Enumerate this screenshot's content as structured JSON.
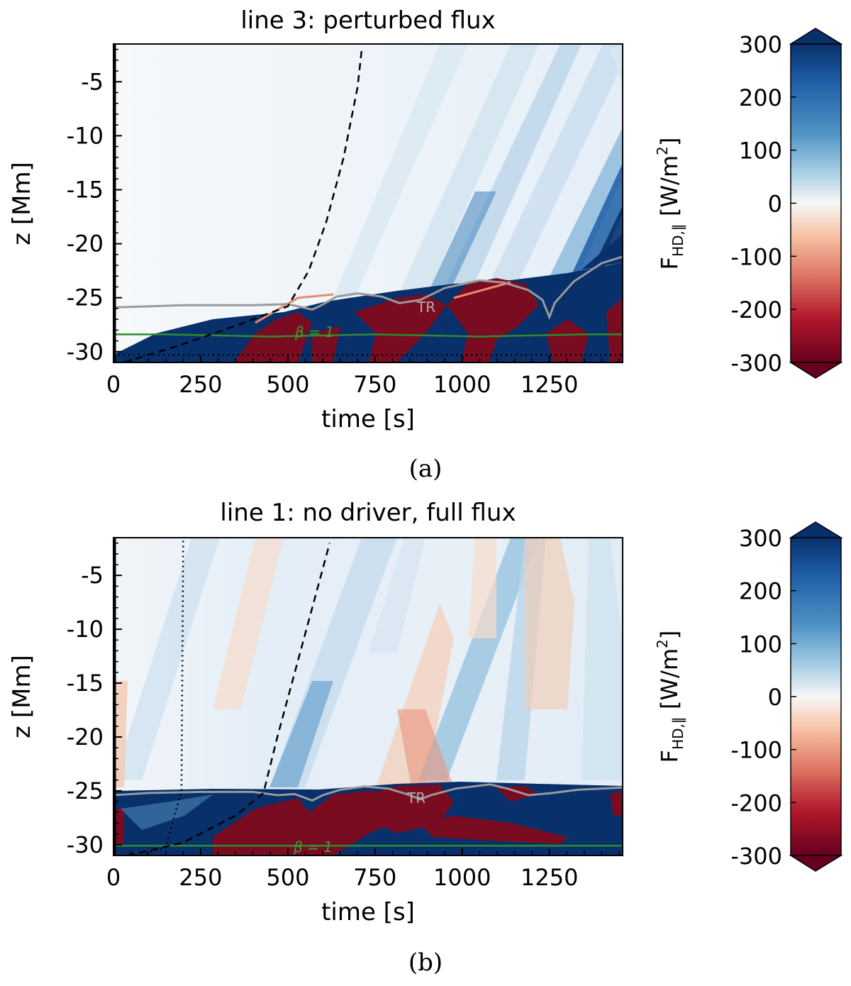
{
  "colors": {
    "positive_strong": "#08306b",
    "positive_light": "#cfe3f1",
    "zero": "#f7f7f7",
    "negative_light": "#f4c4a8",
    "negative_strong": "#67001f",
    "transition_region_line": "#999999",
    "beta_line": "#2e8b2e"
  },
  "chart_data": [
    {
      "type": "heatmap",
      "panel_label": "(a)",
      "title": "line 3: perturbed flux",
      "xlabel": "time [s]",
      "ylabel": "z [Mm]",
      "xlim": [
        0,
        1460
      ],
      "ylim": [
        -31,
        -1.5
      ],
      "xticks": [
        "0",
        "250",
        "500",
        "750",
        "1000",
        "1250"
      ],
      "xtick_values": [
        0,
        250,
        500,
        750,
        1000,
        1250
      ],
      "yticks": [
        "-5",
        "-10",
        "-15",
        "-20",
        "-25",
        "-30"
      ],
      "ytick_values": [
        -5,
        -10,
        -15,
        -20,
        -25,
        -30
      ],
      "colorbar": {
        "label_main": "F",
        "label_sub": "HD,∥",
        "label_unit_open": " [W/m",
        "label_unit_sup": "2",
        "label_unit_close": "]",
        "range": [
          -300,
          300
        ],
        "ticks": [
          "300",
          "200",
          "100",
          "0",
          "-100",
          "-200",
          "-300"
        ],
        "tick_values": [
          300,
          200,
          100,
          0,
          -100,
          -200,
          -300
        ]
      },
      "annotations": {
        "tr_label": "TR",
        "beta_label": "β = 1"
      },
      "tr_line": [
        [
          0,
          -25.9
        ],
        [
          100,
          -25.8
        ],
        [
          200,
          -25.7
        ],
        [
          300,
          -25.7
        ],
        [
          400,
          -25.7
        ],
        [
          500,
          -25.6
        ],
        [
          570,
          -26.1
        ],
        [
          590,
          -25.8
        ],
        [
          640,
          -24.9
        ],
        [
          700,
          -24.6
        ],
        [
          770,
          -24.9
        ],
        [
          820,
          -25.5
        ],
        [
          880,
          -25.2
        ],
        [
          950,
          -24.1
        ],
        [
          1050,
          -23.4
        ],
        [
          1120,
          -23.6
        ],
        [
          1190,
          -24.3
        ],
        [
          1230,
          -25.2
        ],
        [
          1250,
          -26.8
        ],
        [
          1265,
          -25.5
        ],
        [
          1320,
          -23.5
        ],
        [
          1400,
          -21.8
        ],
        [
          1460,
          -21.2
        ]
      ],
      "beta_line": [
        [
          0,
          -28.4
        ],
        [
          150,
          -28.4
        ],
        [
          300,
          -28.5
        ],
        [
          450,
          -28.6
        ],
        [
          600,
          -28.5
        ],
        [
          750,
          -28.4
        ],
        [
          900,
          -28.5
        ],
        [
          1050,
          -28.6
        ],
        [
          1200,
          -28.5
        ],
        [
          1350,
          -28.4
        ],
        [
          1460,
          -28.4
        ]
      ],
      "dashed_line": [
        [
          30,
          -31
        ],
        [
          200,
          -29.3
        ],
        [
          350,
          -27.6
        ],
        [
          500,
          -25.8
        ],
        [
          560,
          -22.5
        ],
        [
          610,
          -18
        ],
        [
          660,
          -12
        ],
        [
          700,
          -5.5
        ],
        [
          712,
          -2
        ]
      ],
      "dotted_line": [
        [
          0,
          -30.3
        ],
        [
          1460,
          -30.3
        ]
      ]
    },
    {
      "type": "heatmap",
      "panel_label": "(b)",
      "title": "line 1: no driver, full flux",
      "xlabel": "time [s]",
      "ylabel": "z [Mm]",
      "xlim": [
        0,
        1460
      ],
      "ylim": [
        -31,
        -1.5
      ],
      "xticks": [
        "0",
        "250",
        "500",
        "750",
        "1000",
        "1250"
      ],
      "xtick_values": [
        0,
        250,
        500,
        750,
        1000,
        1250
      ],
      "yticks": [
        "-5",
        "-10",
        "-15",
        "-20",
        "-25",
        "-30"
      ],
      "ytick_values": [
        -5,
        -10,
        -15,
        -20,
        -25,
        -30
      ],
      "colorbar": {
        "label_main": "F",
        "label_sub": "HD,∥",
        "label_unit_open": " [W/m",
        "label_unit_sup": "2",
        "label_unit_close": "]",
        "range": [
          -300,
          300
        ],
        "ticks": [
          "300",
          "200",
          "100",
          "0",
          "-100",
          "-200",
          "-300"
        ],
        "tick_values": [
          300,
          200,
          100,
          0,
          -100,
          -200,
          -300
        ]
      },
      "annotations": {
        "tr_label": "TR",
        "beta_label": "β = 1"
      },
      "tr_line": [
        [
          0,
          -25.4
        ],
        [
          100,
          -25.2
        ],
        [
          250,
          -25.1
        ],
        [
          400,
          -25.1
        ],
        [
          470,
          -25.4
        ],
        [
          520,
          -25.3
        ],
        [
          570,
          -25.9
        ],
        [
          600,
          -25.4
        ],
        [
          650,
          -24.9
        ],
        [
          720,
          -24.6
        ],
        [
          790,
          -24.8
        ],
        [
          850,
          -25.4
        ],
        [
          880,
          -25.8
        ],
        [
          910,
          -25.4
        ],
        [
          980,
          -24.8
        ],
        [
          1080,
          -24.4
        ],
        [
          1130,
          -24.8
        ],
        [
          1190,
          -25.4
        ],
        [
          1260,
          -25.2
        ],
        [
          1330,
          -24.9
        ],
        [
          1460,
          -24.7
        ]
      ],
      "beta_line": [
        [
          0,
          -30.1
        ],
        [
          300,
          -30.1
        ],
        [
          600,
          -30.1
        ],
        [
          900,
          -30.1
        ],
        [
          1200,
          -30.1
        ],
        [
          1460,
          -30.1
        ]
      ],
      "dashed_line": [
        [
          40,
          -31
        ],
        [
          200,
          -29.8
        ],
        [
          350,
          -27.3
        ],
        [
          430,
          -25.2
        ],
        [
          470,
          -20
        ],
        [
          520,
          -14
        ],
        [
          570,
          -8
        ],
        [
          620,
          -2
        ]
      ],
      "dotted_line": [
        [
          80,
          -31
        ],
        [
          150,
          -30.2
        ],
        [
          195,
          -25
        ],
        [
          200,
          -1.5
        ]
      ]
    }
  ]
}
